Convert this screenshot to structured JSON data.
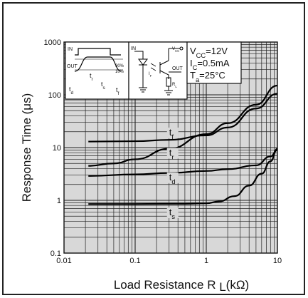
{
  "chart_data": {
    "type": "line",
    "xscale": "log",
    "yscale": "log",
    "xlim": [
      0.01,
      10
    ],
    "ylim": [
      0.1,
      1000
    ],
    "grid": true,
    "xlabel": "Load Resistance",
    "xlabel_symbol": "R",
    "xlabel_subscript": "L",
    "xlabel_unit": "(kΩ)",
    "ylabel": "Response Time",
    "ylabel_unit": "(μs)",
    "x_ticks": [
      "0.01",
      "0.1",
      "1",
      "10"
    ],
    "y_ticks": [
      "0.1",
      "1",
      "10",
      "100",
      "1000"
    ],
    "conditions": [
      "VCC=12V",
      "IC=0.5mA",
      "Ta=25°C"
    ],
    "series": [
      {
        "name": "tf",
        "x": [
          0.022,
          0.1,
          0.3,
          1,
          2,
          5,
          10
        ],
        "y": [
          13,
          13.2,
          14,
          17,
          24,
          55,
          105
        ]
      },
      {
        "name": "tr",
        "x": [
          0.022,
          0.05,
          0.1,
          0.3,
          1,
          2,
          5,
          10
        ],
        "y": [
          4.5,
          5,
          6,
          9.5,
          18,
          29,
          65,
          150
        ]
      },
      {
        "name": "td",
        "x": [
          0.022,
          0.1,
          0.3,
          1,
          2,
          5,
          8,
          10
        ],
        "y": [
          2.9,
          3.1,
          3.3,
          3.6,
          3.9,
          4.6,
          6.8,
          9
        ]
      },
      {
        "name": "ts",
        "x": [
          0.022,
          0.1,
          0.5,
          1,
          1.5,
          2.5,
          4,
          6,
          8,
          10
        ],
        "y": [
          0.85,
          0.85,
          0.86,
          0.88,
          0.95,
          1.2,
          1.9,
          3.2,
          5.5,
          9.5
        ]
      }
    ],
    "series_labels": [
      {
        "series": "tf",
        "text": "t",
        "sub": "f",
        "x": 0.3,
        "y": 17
      },
      {
        "series": "tr",
        "text": "t",
        "sub": "r",
        "x": 0.3,
        "y": 7
      },
      {
        "series": "td",
        "text": "t",
        "sub": "d",
        "x": 0.3,
        "y": 2.4
      },
      {
        "series": "ts",
        "text": "t",
        "sub": "s",
        "x": 0.3,
        "y": 0.52
      }
    ],
    "waveform_labels": [
      "IN",
      "OUT",
      "90%",
      "10%",
      "tr",
      "td",
      "ts",
      "tf"
    ],
    "circuit_labels": [
      "IN",
      "VCC",
      "OUT",
      "IF",
      "RL"
    ]
  }
}
